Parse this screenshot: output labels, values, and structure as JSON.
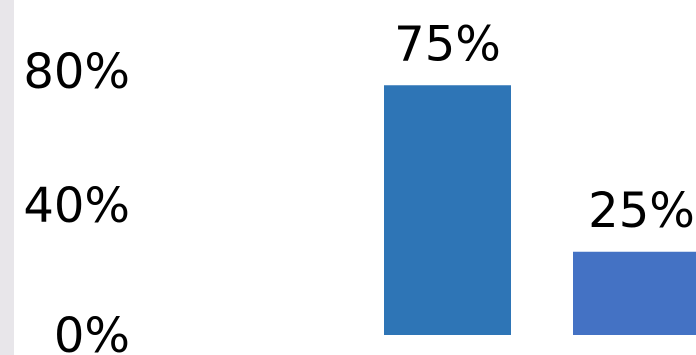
{
  "chart_data": {
    "type": "bar",
    "categories": [
      "",
      ""
    ],
    "values": [
      75,
      25
    ],
    "value_labels": [
      "75%",
      "25%"
    ],
    "bar_colors": [
      "#2e75b6",
      "#4472c4"
    ],
    "title": "",
    "xlabel": "",
    "ylabel": "",
    "ylim": [
      0,
      100
    ],
    "yticks": [
      {
        "value": 0,
        "label": "0%"
      },
      {
        "value": 40,
        "label": "40%"
      },
      {
        "value": 80,
        "label": "80%"
      }
    ],
    "grid": false,
    "legend": "none"
  }
}
